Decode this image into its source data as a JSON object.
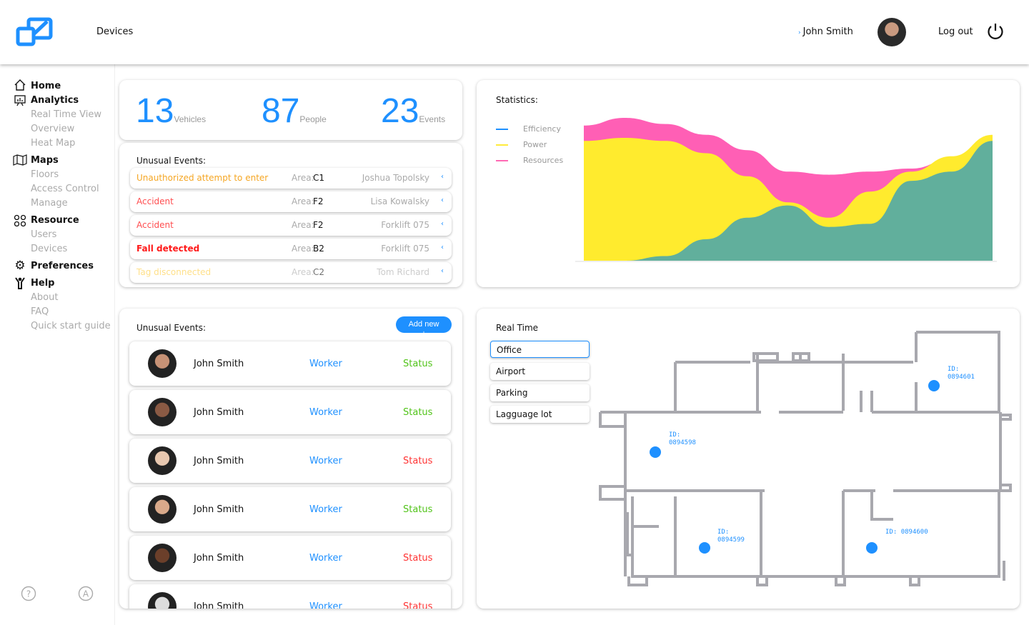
{
  "header": {
    "title": "Devices",
    "user": "John Smith",
    "logout": "Log out"
  },
  "sidebar": {
    "home": "Home",
    "analytics": "Analytics",
    "analytics_items": [
      "Real Time View",
      "Overview",
      "Heat Map"
    ],
    "maps": "Maps",
    "maps_items": [
      "Floors",
      "Access Control",
      "Manage"
    ],
    "resource": "Resource",
    "resource_items": [
      "Users",
      "Devices"
    ],
    "preferences": "Preferences",
    "help": "Help",
    "help_items": [
      "About",
      "FAQ",
      "Quick start guide"
    ]
  },
  "summary": [
    {
      "value": "13",
      "label": "Vehicles"
    },
    {
      "value": "87",
      "label": "People"
    },
    {
      "value": "23",
      "label": "Events"
    }
  ],
  "events": {
    "title": "Unusual Events:",
    "area_label": "Area:",
    "rows": [
      {
        "type": "Unauthorized attempt to enter",
        "area": "C1",
        "who": "Joshua Topolsky",
        "color": "#f5a623"
      },
      {
        "type": "Accident",
        "area": "F2",
        "who": "Lisa Kowalsky",
        "color": "#ff4d4f"
      },
      {
        "type": "Accident",
        "area": "F2",
        "who": "Forklift 075",
        "color": "#ff4d4f"
      },
      {
        "type": "Fall detected",
        "area": "B2",
        "who": "Forklift 075",
        "color": "#ff1a1a"
      },
      {
        "type": "Tag disconnected",
        "area": "C2",
        "who": "Tom Richard",
        "color": "#ffe08a"
      }
    ]
  },
  "people": {
    "title": "Unusual Events:",
    "add_label": "Add new",
    "rows": [
      {
        "name": "John Smith",
        "role": "Worker",
        "status": "Status",
        "status_color": "#52c41a"
      },
      {
        "name": "John Smith",
        "role": "Worker",
        "status": "Status",
        "status_color": "#52c41a"
      },
      {
        "name": "John Smith",
        "role": "Worker",
        "status": "Status",
        "status_color": "#ff3333"
      },
      {
        "name": "John Smith",
        "role": "Worker",
        "status": "Status",
        "status_color": "#52c41a"
      },
      {
        "name": "John Smith",
        "role": "Worker",
        "status": "Status",
        "status_color": "#ff3333"
      },
      {
        "name": "John Smith",
        "role": "Worker",
        "status": "Status",
        "status_color": "#ff3333"
      }
    ]
  },
  "chart_data": {
    "type": "area",
    "title": "Statistics:",
    "x": [
      0,
      1,
      2,
      3,
      4,
      5,
      6,
      7,
      8,
      9,
      10
    ],
    "series": [
      {
        "name": "Efficiency",
        "color": "#1e90ff",
        "values": [
          0,
          0,
          3,
          14,
          28,
          36,
          22,
          24,
          52,
          58,
          78
        ]
      },
      {
        "name": "Power",
        "color": "#ffeb3b",
        "values": [
          78,
          80,
          78,
          70,
          55,
          38,
          28,
          45,
          58,
          68,
          82
        ]
      },
      {
        "name": "Resources",
        "color": "#ff69b4",
        "values": [
          88,
          93,
          89,
          82,
          72,
          58,
          56,
          58,
          60,
          66,
          72
        ]
      }
    ],
    "ylim": [
      0,
      100
    ]
  },
  "realtime": {
    "title": "Real Time",
    "options": [
      "Office",
      "Airport",
      "Parking",
      "Lagguage lot"
    ],
    "selected": "Office",
    "tags": [
      {
        "id_label": "ID:",
        "id": "0894601"
      },
      {
        "id_label": "ID:",
        "id": "0894598"
      },
      {
        "id_label": "ID:",
        "id": "0894599"
      },
      {
        "id_label": "ID:",
        "id": "0894600"
      }
    ]
  }
}
